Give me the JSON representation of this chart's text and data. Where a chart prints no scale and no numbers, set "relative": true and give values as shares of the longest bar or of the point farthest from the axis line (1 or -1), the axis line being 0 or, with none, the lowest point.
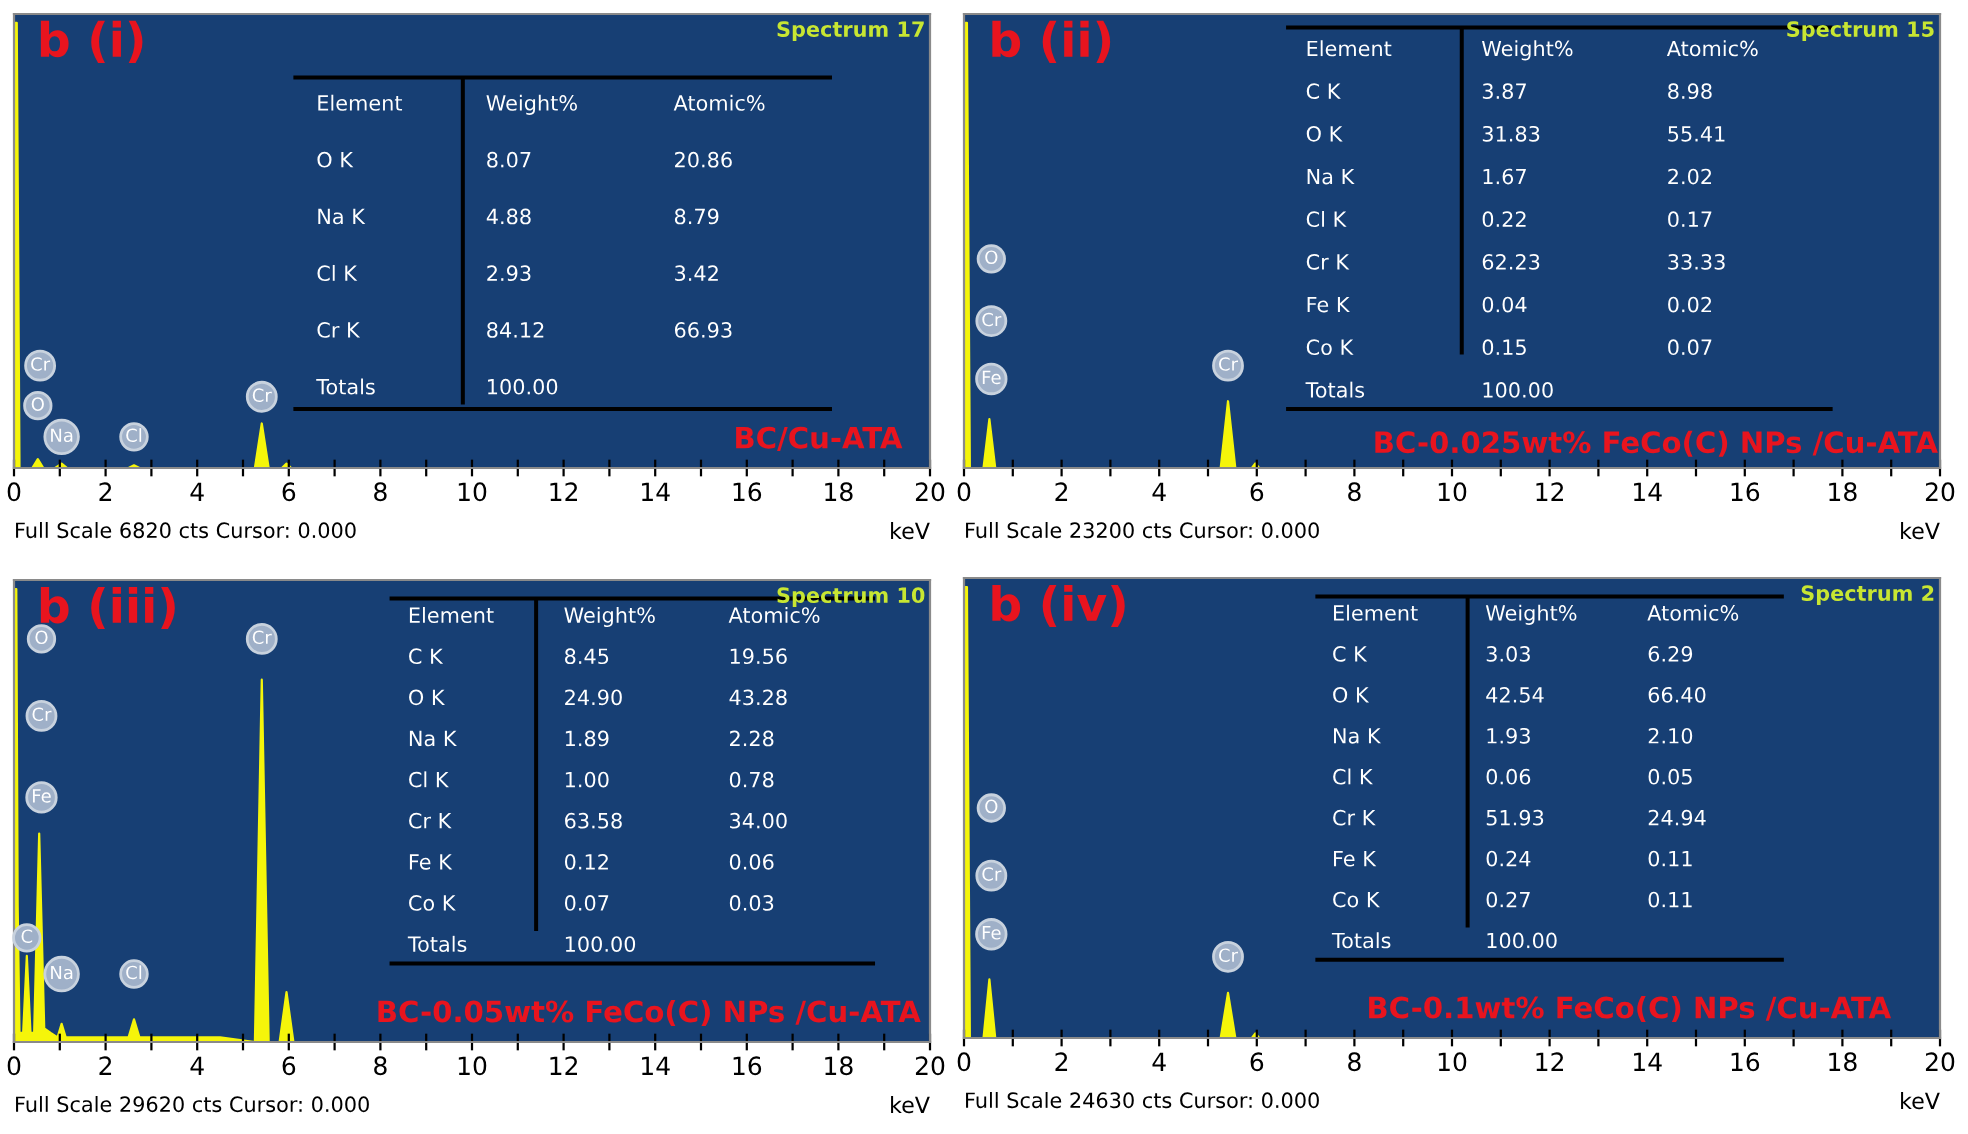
{
  "chart_data": [
    {
      "type": "area",
      "title": "b (i)",
      "xlabel": "keV",
      "relative": true,
      "xlim": [
        0,
        20
      ],
      "xticks": [
        0,
        {
          "value": 1,
          "label": null
        },
        2,
        {
          "value": 3,
          "label": null
        },
        4,
        {
          "value": 5,
          "label": null
        },
        6,
        {
          "value": 7,
          "label": null
        },
        8,
        {
          "value": 9,
          "label": null
        },
        10,
        {
          "value": 11,
          "label": null
        },
        12,
        {
          "value": 13,
          "label": null
        },
        14,
        {
          "value": 15,
          "label": null
        },
        16,
        {
          "value": 17,
          "label": null
        },
        18,
        {
          "value": 19,
          "label": null
        },
        20
      ],
      "x": [
        0,
        0.03,
        0.06,
        0.12,
        0.4,
        0.52,
        0.64,
        0.9,
        1.04,
        1.16,
        2.5,
        2.62,
        2.74,
        5.26,
        5.41,
        5.56,
        5.85,
        5.95,
        6.05,
        20
      ],
      "series": [
        {
          "color": "#f5f50a",
          "values": [
            0,
            1,
            1,
            0,
            0,
            0.02,
            0,
            0,
            0.01,
            0,
            0,
            0.006,
            0,
            0,
            0.1,
            0,
            0,
            0.01,
            0,
            0
          ]
        }
      ],
      "annotations": [
        "Spectrum 17",
        "Full Scale 6820 cts Cursor: 0.000",
        "BC/Cu-ATA",
        "Element",
        "Weight%",
        "Atomic%",
        "O K",
        "8.07",
        "20.86",
        "Na K",
        "4.88",
        "8.79",
        "Cl K",
        "2.93",
        "3.42",
        "Cr K",
        "84.12",
        "66.93",
        "Totals",
        "100.00",
        {
          "text": "Cr",
          "x": 0.57,
          "y": 0.23
        },
        {
          "text": "O",
          "x": 0.52,
          "y": 0.14
        },
        {
          "text": "Na",
          "x": 1.04,
          "y": 0.07
        },
        {
          "text": "Cl",
          "x": 2.62,
          "y": 0.07
        },
        {
          "text": "Cr",
          "x": 5.41,
          "y": 0.16
        }
      ]
    },
    {
      "type": "area",
      "title": "b (ii)",
      "xlabel": "keV",
      "relative": true,
      "xlim": [
        0,
        20
      ],
      "xticks": [
        0,
        {
          "value": 1,
          "label": null
        },
        2,
        {
          "value": 3,
          "label": null
        },
        4,
        {
          "value": 5,
          "label": null
        },
        6,
        {
          "value": 7,
          "label": null
        },
        8,
        {
          "value": 9,
          "label": null
        },
        10,
        {
          "value": 11,
          "label": null
        },
        12,
        {
          "value": 13,
          "label": null
        },
        14,
        {
          "value": 15,
          "label": null
        },
        16,
        {
          "value": 17,
          "label": null
        },
        18,
        {
          "value": 19,
          "label": null
        },
        20
      ],
      "x": [
        0,
        0.03,
        0.06,
        0.12,
        0.4,
        0.52,
        0.64,
        5.26,
        5.41,
        5.56,
        5.9,
        5.97,
        6.05,
        20
      ],
      "series": [
        {
          "color": "#f5f50a",
          "values": [
            0,
            1,
            1,
            0,
            0,
            0.11,
            0,
            0,
            0.15,
            0,
            0,
            0.01,
            0,
            0
          ]
        }
      ],
      "annotations": [
        "Spectrum 15",
        "Full Scale 23200 cts Cursor: 0.000",
        "BC-0.025wt% FeCo(C) NPs /Cu-ATA",
        "Element",
        "Weight%",
        "Atomic%",
        "C K",
        "3.87",
        "8.98",
        "O K",
        "31.83",
        "55.41",
        "Na K",
        "1.67",
        "2.02",
        "Cl K",
        "0.22",
        "0.17",
        "Cr K",
        "62.23",
        "33.33",
        "Fe K",
        "0.04",
        "0.02",
        "Co K",
        "0.15",
        "0.07",
        "Totals",
        "100.00",
        {
          "text": "O",
          "x": 0.56,
          "y": 0.47
        },
        {
          "text": "Cr",
          "x": 0.56,
          "y": 0.33
        },
        {
          "text": "Fe",
          "x": 0.56,
          "y": 0.2
        },
        {
          "text": "Cr",
          "x": 5.41,
          "y": 0.23
        }
      ]
    },
    {
      "type": "area",
      "title": "b (iii)",
      "xlabel": "keV",
      "relative": true,
      "xlim": [
        0,
        20
      ],
      "xticks": [
        0,
        {
          "value": 1,
          "label": null
        },
        2,
        {
          "value": 3,
          "label": null
        },
        4,
        {
          "value": 5,
          "label": null
        },
        6,
        {
          "value": 7,
          "label": null
        },
        8,
        {
          "value": 9,
          "label": null
        },
        10,
        {
          "value": 11,
          "label": null
        },
        12,
        {
          "value": 13,
          "label": null
        },
        14,
        {
          "value": 15,
          "label": null
        },
        16,
        {
          "value": 17,
          "label": null
        },
        18,
        {
          "value": 19,
          "label": null
        },
        20
      ],
      "x": [
        0,
        0.02,
        0.05,
        0.08,
        0.12,
        0.2,
        0.28,
        0.36,
        0.44,
        0.55,
        0.66,
        0.8,
        0.95,
        1.04,
        1.13,
        1.5,
        2.5,
        2.62,
        2.74,
        4.5,
        5.26,
        5.41,
        5.56,
        5.8,
        5.95,
        6.1,
        20
      ],
      "series": [
        {
          "color": "#f5f50a",
          "values": [
            0,
            1,
            1,
            0.3,
            0.02,
            0.02,
            0.19,
            0.02,
            0.02,
            0.46,
            0.03,
            0.02,
            0.01,
            0.04,
            0.01,
            0.01,
            0.01,
            0.05,
            0.01,
            0.01,
            0,
            0.8,
            0,
            0,
            0.11,
            0,
            0
          ]
        }
      ],
      "annotations": [
        "Spectrum 10",
        "Full Scale 29620 cts Cursor: 0.000",
        "BC-0.05wt% FeCo(C) NPs /Cu-ATA",
        "Element",
        "Weight%",
        "Atomic%",
        "C K",
        "8.45",
        "19.56",
        "O K",
        "24.90",
        "43.28",
        "Na K",
        "1.89",
        "2.28",
        "Cl K",
        "1.00",
        "0.78",
        "Cr K",
        "63.58",
        "34.00",
        "Fe K",
        "0.12",
        "0.06",
        "Co K",
        "0.07",
        "0.03",
        "Totals",
        "100.00",
        {
          "text": "O",
          "x": 0.6,
          "y": 0.89
        },
        {
          "text": "Cr",
          "x": 0.6,
          "y": 0.72
        },
        {
          "text": "Fe",
          "x": 0.6,
          "y": 0.54
        },
        {
          "text": "C",
          "x": 0.28,
          "y": 0.23
        },
        {
          "text": "Na",
          "x": 1.04,
          "y": 0.15
        },
        {
          "text": "Cl",
          "x": 2.62,
          "y": 0.15
        },
        {
          "text": "Cr",
          "x": 5.41,
          "y": 0.89
        }
      ]
    },
    {
      "type": "area",
      "title": "b (iv)",
      "xlabel": "keV",
      "relative": true,
      "xlim": [
        0,
        20
      ],
      "xticks": [
        0,
        {
          "value": 1,
          "label": null
        },
        2,
        {
          "value": 3,
          "label": null
        },
        4,
        {
          "value": 5,
          "label": null
        },
        6,
        {
          "value": 7,
          "label": null
        },
        8,
        {
          "value": 9,
          "label": null
        },
        10,
        {
          "value": 11,
          "label": null
        },
        12,
        {
          "value": 13,
          "label": null
        },
        14,
        {
          "value": 15,
          "label": null
        },
        16,
        {
          "value": 17,
          "label": null
        },
        18,
        {
          "value": 19,
          "label": null
        },
        20
      ],
      "x": [
        0,
        0.03,
        0.06,
        0.12,
        0.4,
        0.52,
        0.64,
        5.26,
        5.41,
        5.56,
        5.9,
        5.97,
        6.05,
        20
      ],
      "series": [
        {
          "color": "#f5f50a",
          "values": [
            0,
            1,
            1,
            0,
            0,
            0.13,
            0,
            0,
            0.1,
            0,
            0,
            0.01,
            0,
            0
          ]
        }
      ],
      "annotations": [
        "Spectrum 2",
        "Full Scale 24630 cts Cursor: 0.000",
        "BC-0.1wt% FeCo(C) NPs /Cu-ATA",
        "Element",
        "Weight%",
        "Atomic%",
        "C K",
        "3.03",
        "6.29",
        "O K",
        "42.54",
        "66.40",
        "Na K",
        "1.93",
        "2.10",
        "Cl K",
        "0.06",
        "0.05",
        "Cr K",
        "51.93",
        "24.94",
        "Fe K",
        "0.24",
        "0.11",
        "Co K",
        "0.27",
        "0.11",
        "Totals",
        "100.00",
        {
          "text": "O",
          "x": 0.56,
          "y": 0.51
        },
        {
          "text": "Cr",
          "x": 0.56,
          "y": 0.36
        },
        {
          "text": "Fe",
          "x": 0.56,
          "y": 0.23
        },
        {
          "text": "Cr",
          "x": 5.41,
          "y": 0.18
        }
      ]
    }
  ]
}
